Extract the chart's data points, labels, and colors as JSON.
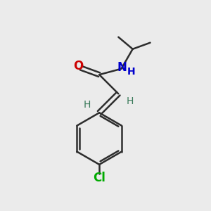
{
  "bg_color": "#ebebeb",
  "bond_color": "#2d2d2d",
  "o_color": "#cc0000",
  "n_color": "#0000cc",
  "cl_color": "#00aa00",
  "h_color": "#3a7a5a",
  "line_width": 1.8,
  "figsize": [
    3.0,
    3.0
  ],
  "dpi": 100,
  "xlim": [
    0,
    10
  ],
  "ylim": [
    0,
    10
  ]
}
